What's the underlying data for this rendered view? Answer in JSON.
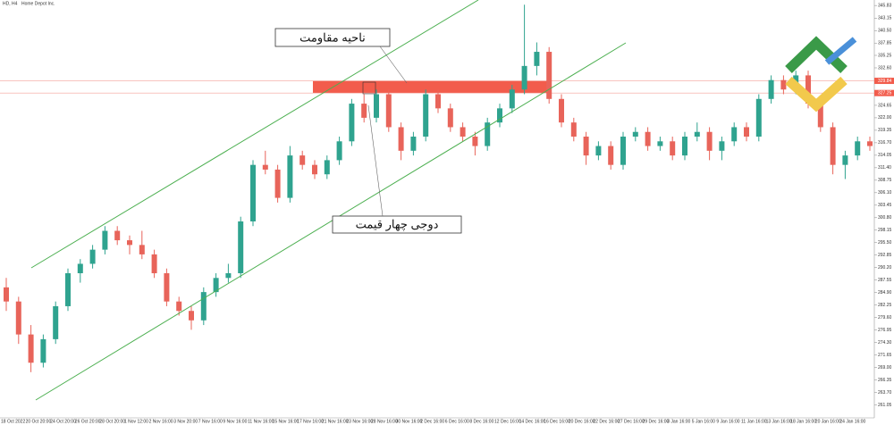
{
  "chart_data": {
    "type": "candlestick",
    "symbol": "HD, H4",
    "title": "Home Depot Inc.",
    "annotations": [
      "ناحیه مقاومت",
      "دوجی چهار قیمت"
    ],
    "up_color": "#2fa38f",
    "down_color": "#e8645a",
    "channel_color": "#4caf50",
    "ylim": [
      258.3,
      347
    ],
    "yticks": [
      345.83,
      343.15,
      {
        "value": 340.5,
        "label": "340.50"
      },
      337.85,
      335.25,
      {
        "value": 332.6,
        "label": "332.60"
      },
      324.65,
      {
        "value": 322,
        "label": "322.00"
      },
      319.35,
      {
        "value": 316.7,
        "label": "316.70"
      },
      314.05,
      {
        "value": 311.4,
        "label": "311.40"
      },
      308.75,
      {
        "value": 306.1,
        "label": "306.10"
      },
      303.45,
      {
        "value": 300.8,
        "label": "300.80"
      },
      298.15,
      {
        "value": 295.5,
        "label": "295.50"
      },
      292.85,
      {
        "value": 290.2,
        "label": "290.20"
      },
      287.55,
      {
        "value": 284.9,
        "label": "284.90"
      },
      282.25,
      {
        "value": 279.6,
        "label": "279.60"
      },
      276.95,
      {
        "value": 274.3,
        "label": "274.30"
      },
      271.65,
      {
        "value": 269,
        "label": "269.00"
      },
      266.35,
      {
        "value": 263.7,
        "label": "263.70"
      },
      261.05
    ],
    "resistance_zone": [
      329.84,
      327.25
    ],
    "x_labels": [
      "18 Oct 2022",
      "20 Oct 20:00",
      "24 Oct 20:00",
      "26 Oct 20:00",
      "28 Oct 20:00",
      "1 Nov 12:00",
      "2 Nov 16:00",
      "3 Nov 20:00",
      "7 Nov 16:00",
      "9 Nov 16:00",
      "11 Nov 16:00",
      "15 Nov 16:00",
      "17 Nov 16:00",
      "21 Nov 16:00",
      "23 Nov 16:00",
      "28 Nov 16:00",
      "30 Nov 16:00",
      "2 Dec 16:00",
      "6 Dec 16:00",
      "8 Dec 16:00",
      "12 Dec 16:00",
      "14 Dec 16:00",
      "16 Dec 16:00",
      "20 Dec 16:00",
      "22 Dec 16:00",
      "27 Dec 16:00",
      "29 Dec 16:00",
      "3 Jan 16:00",
      "5 Jan 16:00",
      "9 Jan 16:00",
      "11 Jan 16:00",
      "13 Jan 16:00",
      "18 Jan 16:00",
      "20 Jan 16:00",
      "24 Jan 16:00"
    ],
    "ohlc": [
      [
        286,
        288,
        281,
        283
      ],
      [
        283,
        284,
        274,
        276
      ],
      [
        276,
        278,
        268,
        270
      ],
      [
        270,
        276,
        269,
        275
      ],
      [
        275,
        283,
        274,
        282
      ],
      [
        282,
        290,
        281,
        289
      ],
      [
        289,
        292,
        287,
        291
      ],
      [
        291,
        295,
        290,
        294
      ],
      [
        294,
        299,
        293,
        298
      ],
      [
        298,
        299,
        295,
        296
      ],
      [
        296,
        297,
        293,
        295
      ],
      [
        295,
        298,
        292,
        293
      ],
      [
        293,
        294,
        288,
        289
      ],
      [
        289,
        290,
        282,
        283
      ],
      [
        283,
        284,
        280,
        281
      ],
      [
        281,
        282,
        277,
        279
      ],
      [
        279,
        286,
        278,
        285
      ],
      [
        285,
        289,
        284,
        288
      ],
      [
        288,
        291,
        287,
        289
      ],
      [
        289,
        301,
        288,
        300
      ],
      [
        300,
        313,
        299,
        312
      ],
      [
        312,
        315,
        310,
        311
      ],
      [
        311,
        312,
        304,
        305
      ],
      [
        305,
        316,
        304,
        314
      ],
      [
        314,
        315,
        311,
        312
      ],
      [
        312,
        313,
        309,
        310
      ],
      [
        310,
        314,
        309,
        313
      ],
      [
        313,
        318,
        312,
        317
      ],
      [
        317,
        326,
        316,
        325
      ],
      [
        325,
        327,
        321,
        322
      ],
      [
        322,
        328,
        321,
        327
      ],
      [
        327,
        328,
        319,
        320
      ],
      [
        320,
        321,
        313,
        315
      ],
      [
        315,
        319,
        314,
        318
      ],
      [
        318,
        328,
        317,
        327
      ],
      [
        327,
        328,
        323,
        324
      ],
      [
        324,
        325,
        319,
        320
      ],
      [
        320,
        321,
        317,
        318
      ],
      [
        318,
        319,
        314,
        316
      ],
      [
        316,
        322,
        315,
        321
      ],
      [
        321,
        325,
        320,
        324
      ],
      [
        324,
        329,
        323,
        328
      ],
      [
        328,
        346,
        327,
        333
      ],
      [
        333,
        338,
        331,
        336
      ],
      [
        336,
        337,
        325,
        326
      ],
      [
        326,
        327,
        320,
        321
      ],
      [
        321,
        322,
        317,
        318
      ],
      [
        318,
        319,
        312,
        314
      ],
      [
        314,
        317,
        313,
        316
      ],
      [
        316,
        317,
        311,
        312
      ],
      [
        312,
        319,
        311,
        318
      ],
      [
        318,
        320,
        317,
        319
      ],
      [
        319,
        320,
        315,
        316
      ],
      [
        316,
        318,
        315,
        317
      ],
      [
        317,
        318,
        313,
        314
      ],
      [
        314,
        319,
        313,
        318
      ],
      [
        318,
        321,
        317,
        319
      ],
      [
        319,
        320,
        313,
        315
      ],
      [
        315,
        318,
        313,
        317
      ],
      [
        317,
        321,
        316,
        320
      ],
      [
        320,
        321,
        317,
        318
      ],
      [
        318,
        327,
        317,
        326
      ],
      [
        326,
        331,
        325,
        330
      ],
      [
        330,
        331,
        327,
        328
      ],
      [
        328,
        332,
        327,
        331
      ],
      [
        331,
        332,
        324,
        325
      ],
      [
        325,
        326,
        319,
        320
      ],
      [
        320,
        321,
        310,
        312
      ],
      [
        312,
        315,
        309,
        314
      ],
      [
        314,
        318,
        313,
        317
      ],
      [
        317,
        318,
        315,
        316
      ]
    ]
  }
}
